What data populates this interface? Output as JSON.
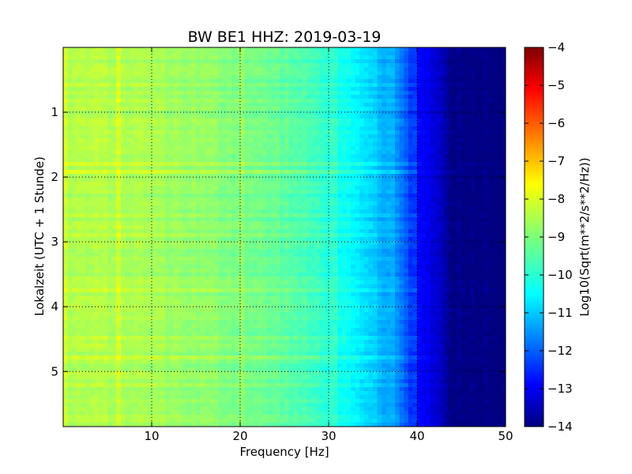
{
  "chart_data": {
    "type": "heatmap",
    "title": "BW BE1 HHZ: 2019-03-19",
    "xlabel": "Frequency [Hz]",
    "ylabel": "Lokalzeit (UTC + 1 Stunde)",
    "xlim": [
      0,
      50
    ],
    "ylim": [
      5.85,
      0
    ],
    "y_inverted": true,
    "xticks": [
      10,
      20,
      30,
      40,
      50
    ],
    "xtick_labels": [
      "10",
      "20",
      "30",
      "40",
      "50"
    ],
    "yticks": [
      1,
      2,
      3,
      4,
      5
    ],
    "ytick_labels": [
      "1",
      "2",
      "3",
      "4",
      "5"
    ],
    "grid": true,
    "grid_style": "dotted",
    "colormap": "jet",
    "colorbar": {
      "label": "Log10(Sqrt(m**2/s**2/Hz))",
      "range": [
        -14,
        -4
      ],
      "ticks": [
        -4,
        -5,
        -6,
        -7,
        -8,
        -9,
        -10,
        -11,
        -12,
        -13,
        -14
      ],
      "tick_labels": [
        "−4",
        "−5",
        "−6",
        "−7",
        "−8",
        "−9",
        "−10",
        "−11",
        "−12",
        "−13",
        "−14"
      ]
    },
    "spectrum_profile": {
      "frequency_hz": [
        0,
        5,
        10,
        15,
        20,
        25,
        30,
        33,
        36,
        38,
        40,
        42,
        44,
        50
      ],
      "log10_amplitude": [
        -8.5,
        -8.5,
        -8.6,
        -8.8,
        -9.0,
        -9.3,
        -9.8,
        -10.4,
        -10.9,
        -11.5,
        -12.6,
        -13.1,
        -13.9,
        -14.0
      ]
    }
  }
}
